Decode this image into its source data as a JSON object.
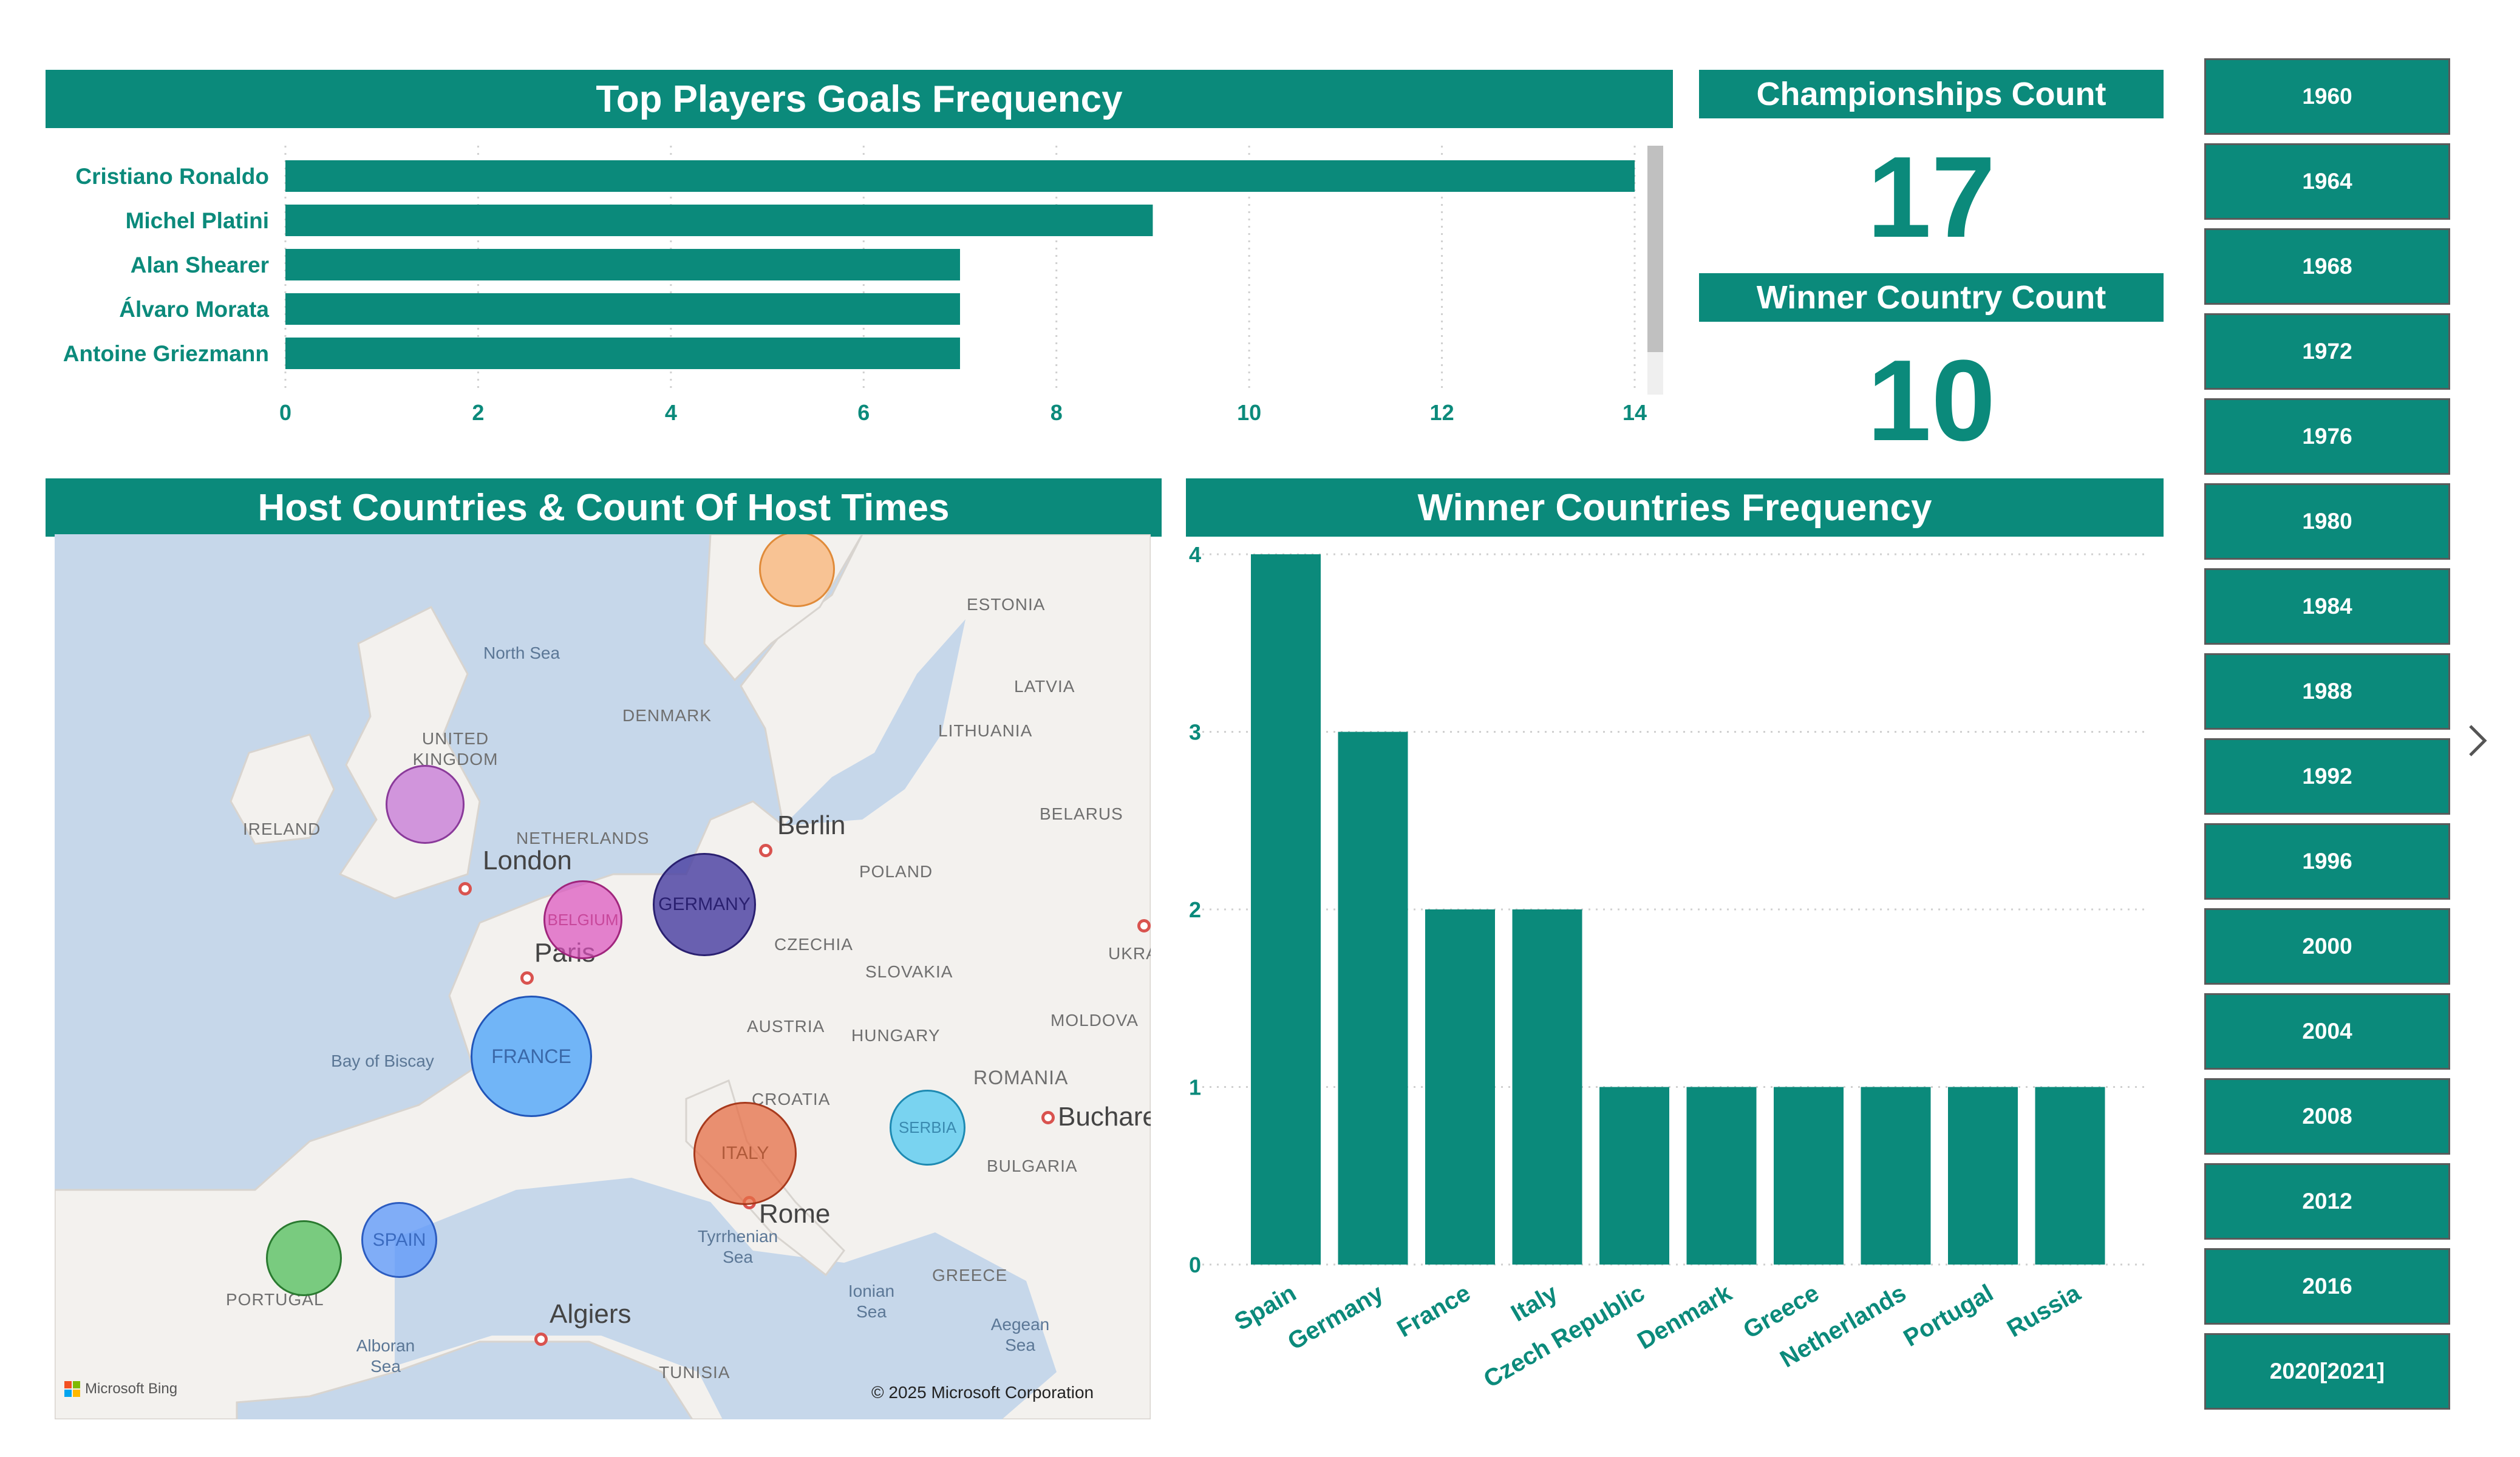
{
  "top_players": {
    "title": "Top Players Goals Frequency"
  },
  "kpis": {
    "championships_title": "Championships Count",
    "championships_value": "17",
    "winner_count_title": "Winner Country Count",
    "winner_count_value": "10"
  },
  "map": {
    "title": "Host Countries & Count Of Host Times",
    "attribution": "© 2025 Microsoft Corporation",
    "provider": "Microsoft Bing",
    "labels": {
      "north_sea": "North Sea",
      "uk": "UNITED KINGDOM",
      "ireland": "IRELAND",
      "denmark": "DENMARK",
      "netherlands": "NETHERLANDS",
      "london": "London",
      "paris": "Paris",
      "berlin": "Berlin",
      "poland": "POLAND",
      "estonia": "ESTONIA",
      "latvia": "LATVIA",
      "lithuania": "LITHUANIA",
      "belarus": "BELARUS",
      "czechia": "CZECHIA",
      "slovakia": "SLOVAKIA",
      "austria": "AUSTRIA",
      "hungary": "HUNGARY",
      "moldova": "MOLDOVA",
      "ukraine": "UKRA",
      "romania": "ROMANIA",
      "bucharest": "Buchare",
      "croatia": "CROATIA",
      "bulgaria": "BULGARIA",
      "rome": "Rome",
      "tyrrhenian": "Tyrrhenian Sea",
      "ionian": "Ionian Sea",
      "aegean": "Aegean Sea",
      "greece": "GREECE",
      "bay": "Bay of Biscay",
      "portugal": "PORTUGAL",
      "alboran": "Alboran Sea",
      "algiers": "Algiers",
      "tunisia": "TUNISIA"
    },
    "bubbles": {
      "germany": "GERMANY",
      "belgium": "BELGIUM",
      "france": "FRANCE",
      "italy": "ITALY",
      "serbia": "SERBIA",
      "spain": "SPAIN"
    }
  },
  "winners": {
    "title": "Winner Countries Frequency"
  },
  "slicer": {
    "years": [
      "1960",
      "1964",
      "1968",
      "1972",
      "1976",
      "1980",
      "1984",
      "1988",
      "1992",
      "1996",
      "2000",
      "2004",
      "2008",
      "2012",
      "2016",
      "2020[2021]"
    ]
  },
  "colors": {
    "accent": "#0b8a7b",
    "scrollbar": "#c0c0c0"
  },
  "chart_data": [
    {
      "type": "bar",
      "orientation": "horizontal",
      "title": "Top Players Goals Frequency",
      "categories": [
        "Cristiano Ronaldo",
        "Michel Platini",
        "Alan Shearer",
        "Álvaro Morata",
        "Antoine Griezmann"
      ],
      "values": [
        14,
        9,
        7,
        7,
        7
      ],
      "xlim": [
        0,
        14
      ],
      "xticks": [
        0,
        2,
        4,
        6,
        8,
        10,
        12,
        14
      ],
      "grid": true
    },
    {
      "type": "bar",
      "title": "Winner Countries Frequency",
      "categories": [
        "Spain",
        "Germany",
        "France",
        "Italy",
        "Czech Republic",
        "Denmark",
        "Greece",
        "Netherlands",
        "Portugal",
        "Russia"
      ],
      "values": [
        4,
        3,
        2,
        2,
        1,
        1,
        1,
        1,
        1,
        1
      ],
      "ylim": [
        0,
        4
      ],
      "yticks": [
        0,
        1,
        2,
        3,
        4
      ],
      "grid": true
    }
  ]
}
